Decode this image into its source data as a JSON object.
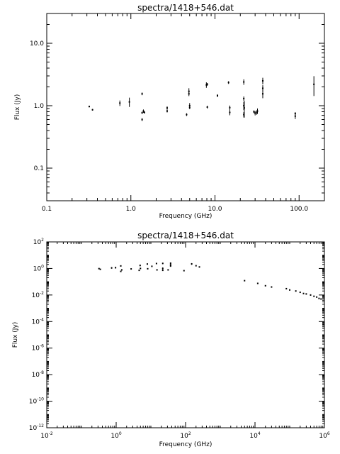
{
  "chart_data": [
    {
      "type": "scatter",
      "title": "spectra/1418+546.dat",
      "xlabel": "Frequency (GHz)",
      "ylabel": "Flux (Jy)",
      "xscale": "log",
      "yscale": "log",
      "xlim": [
        0.1,
        200
      ],
      "ylim": [
        0.03,
        30
      ],
      "xticks": [
        {
          "v": 0.1,
          "label": "0.1"
        },
        {
          "v": 1,
          "label": "1.0"
        },
        {
          "v": 10,
          "label": "10.0"
        },
        {
          "v": 100,
          "label": "100.0"
        }
      ],
      "yticks": [
        {
          "v": 0.1,
          "label": "0.1"
        },
        {
          "v": 1,
          "label": "1.0"
        },
        {
          "v": 10,
          "label": "10.0"
        }
      ],
      "points": [
        [
          0.32,
          0.97,
          0.03
        ],
        [
          0.35,
          0.86,
          0.03
        ],
        [
          0.74,
          1.1,
          0.1
        ],
        [
          0.96,
          1.15,
          0.17
        ],
        [
          1.36,
          1.55,
          0.05
        ],
        [
          1.36,
          0.77,
          0.04
        ],
        [
          1.36,
          0.6,
          0.05
        ],
        [
          1.41,
          0.82,
          0.06
        ],
        [
          1.45,
          0.78,
          0.04
        ],
        [
          2.7,
          0.92,
          0.06
        ],
        [
          2.7,
          0.82,
          0.05
        ],
        [
          4.6,
          0.72,
          0.05
        ],
        [
          4.9,
          1.7,
          0.12
        ],
        [
          4.9,
          1.55,
          0.08
        ],
        [
          5.0,
          1.0,
          0.1
        ],
        [
          5.0,
          0.93,
          0.05
        ],
        [
          7.9,
          2.15,
          0.1
        ],
        [
          8.1,
          2.2,
          0.05
        ],
        [
          8.1,
          0.95,
          0.05
        ],
        [
          10.7,
          1.45,
          0.05
        ],
        [
          14.5,
          2.35,
          0.05
        ],
        [
          15.0,
          0.93,
          0.08
        ],
        [
          15.0,
          0.78,
          0.1
        ],
        [
          22.0,
          2.4,
          0.1
        ],
        [
          22.0,
          1.3,
          0.08
        ],
        [
          22.0,
          1.0,
          0.15
        ],
        [
          22.0,
          0.72,
          0.1
        ],
        [
          22.3,
          0.92,
          0.3
        ],
        [
          29.0,
          0.8,
          0.05
        ],
        [
          30.0,
          0.76,
          0.08
        ],
        [
          31.4,
          0.78,
          0.08
        ],
        [
          32.0,
          0.82,
          0.1
        ],
        [
          37.0,
          2.5,
          0.12
        ],
        [
          37.0,
          1.9,
          0.12
        ],
        [
          37.0,
          1.55,
          0.15
        ],
        [
          90.0,
          0.68,
          0.1
        ],
        [
          90.0,
          0.75,
          0.05
        ],
        [
          150.0,
          2.2,
          0.35
        ]
      ]
    },
    {
      "type": "scatter",
      "title": "spectra/1418+546.dat",
      "xlabel": "Frequency (GHz)",
      "ylabel": "Flux (Jy)",
      "xscale": "log",
      "yscale": "log",
      "xlim": [
        0.01,
        1000000
      ],
      "ylim": [
        1e-12,
        100
      ],
      "xticks": [
        {
          "v": 0.01,
          "base": "10",
          "exp": "-2"
        },
        {
          "v": 1,
          "base": "10",
          "exp": "0"
        },
        {
          "v": 100,
          "base": "10",
          "exp": "2"
        },
        {
          "v": 10000,
          "base": "10",
          "exp": "4"
        },
        {
          "v": 1000000,
          "base": "10",
          "exp": "6"
        }
      ],
      "yticks": [
        {
          "v": 1e-12,
          "base": "10",
          "exp": "-12"
        },
        {
          "v": 1e-10,
          "base": "10",
          "exp": "-10"
        },
        {
          "v": 1e-08,
          "base": "10",
          "exp": "-8"
        },
        {
          "v": 1e-06,
          "base": "10",
          "exp": "-6"
        },
        {
          "v": 0.0001,
          "base": "10",
          "exp": "-4"
        },
        {
          "v": 0.01,
          "base": "10",
          "exp": "-2"
        },
        {
          "v": 1,
          "base": "10",
          "exp": "0"
        },
        {
          "v": 100,
          "base": "10",
          "exp": "2"
        }
      ],
      "points": [
        [
          0.32,
          0.97,
          0.1
        ],
        [
          0.35,
          0.86,
          0.1
        ],
        [
          0.74,
          1.1,
          0.12
        ],
        [
          0.96,
          1.15,
          0.15
        ],
        [
          1.36,
          1.55,
          0.1
        ],
        [
          1.36,
          0.6,
          0.1
        ],
        [
          1.45,
          0.78,
          0.1
        ],
        [
          2.7,
          0.92,
          0.1
        ],
        [
          4.6,
          0.72,
          0.1
        ],
        [
          4.9,
          1.7,
          0.15
        ],
        [
          5.0,
          1.0,
          0.1
        ],
        [
          7.9,
          2.15,
          0.1
        ],
        [
          8.1,
          0.95,
          0.1
        ],
        [
          10.7,
          1.45,
          0.1
        ],
        [
          14.5,
          2.35,
          0.1
        ],
        [
          15.0,
          0.78,
          0.12
        ],
        [
          22.0,
          2.4,
          0.12
        ],
        [
          22.0,
          1.0,
          0.2
        ],
        [
          22.0,
          0.72,
          0.1
        ],
        [
          31.4,
          0.78,
          0.1
        ],
        [
          37.0,
          2.5,
          0.12
        ],
        [
          37.0,
          1.9,
          0.12
        ],
        [
          37.0,
          1.55,
          0.15
        ],
        [
          90.0,
          0.68,
          0.1
        ],
        [
          150.0,
          2.2,
          0.15
        ],
        [
          200.0,
          1.6,
          0.1
        ],
        [
          250.0,
          1.3,
          0.1
        ],
        [
          5000,
          0.12,
          0.1
        ],
        [
          12000,
          0.075,
          0.1
        ],
        [
          20000,
          0.05,
          0.1
        ],
        [
          30000,
          0.04,
          0.1
        ],
        [
          80000,
          0.03,
          0.1
        ],
        [
          100000,
          0.024,
          0.1
        ],
        [
          150000,
          0.02,
          0.1
        ],
        [
          200000,
          0.016,
          0.1
        ],
        [
          250000,
          0.013,
          0.1
        ],
        [
          300000,
          0.012,
          0.1
        ],
        [
          400000,
          0.01,
          0.1
        ],
        [
          500000,
          0.008,
          0.1
        ],
        [
          600000,
          0.007,
          0.1
        ],
        [
          700000,
          0.0055,
          0.1
        ],
        [
          800000,
          0.005,
          0.1
        ]
      ]
    }
  ]
}
